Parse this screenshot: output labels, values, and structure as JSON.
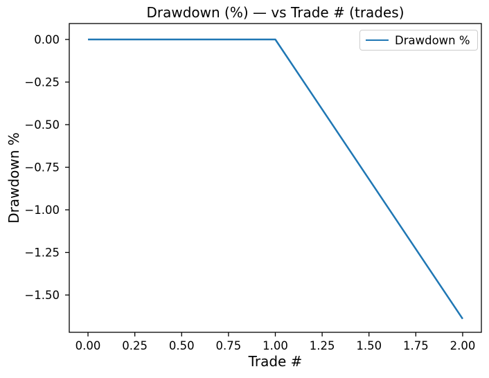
{
  "chart_data": {
    "type": "line",
    "title": "Drawdown (%) — vs Trade # (trades)",
    "xlabel": "Trade #",
    "ylabel": "Drawdown %",
    "x": [
      0,
      1,
      2
    ],
    "series": [
      {
        "name": "Drawdown %",
        "color": "#1f77b4",
        "values": [
          0.0,
          0.0,
          -1.64
        ]
      }
    ],
    "xlim": [
      -0.1,
      2.1
    ],
    "ylim": [
      -1.719,
      0.0935
    ],
    "xticks": [
      0,
      0.25,
      0.5,
      0.75,
      1.0,
      1.25,
      1.5,
      1.75,
      2.0
    ],
    "xtick_labels": [
      "0.00",
      "0.25",
      "0.50",
      "0.75",
      "1.00",
      "1.25",
      "1.50",
      "1.75",
      "2.00"
    ],
    "yticks": [
      0,
      -0.25,
      -0.5,
      -0.75,
      -1.0,
      -1.25,
      -1.5
    ],
    "ytick_labels": [
      "0.00",
      "−0.25",
      "−0.50",
      "−0.75",
      "−1.00",
      "−1.25",
      "−1.50"
    ],
    "grid": false,
    "legend_position": "upper right",
    "legend_entries": [
      "Drawdown %"
    ],
    "axis_color": "#000000",
    "tick_label_color": "#000000",
    "background": "#ffffff"
  }
}
